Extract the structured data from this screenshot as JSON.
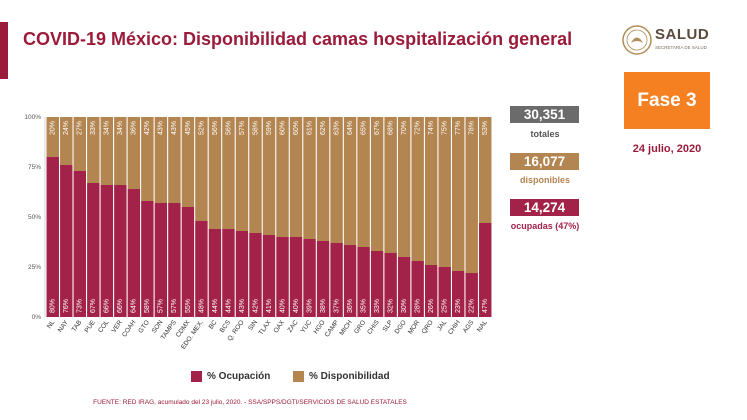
{
  "title": "COVID-19 México: Disponibilidad camas hospitalización general",
  "logo": {
    "name": "SALUD",
    "subtitle": "SECRETARÍA DE SALUD"
  },
  "phase": "Fase 3",
  "date": "24 julio, 2020",
  "stats": {
    "total_value": "30,351",
    "total_label": "totales",
    "available_value": "16,077",
    "available_label": "disponibles",
    "occupied_value": "14,274",
    "occupied_label": "ocupadas (47%)"
  },
  "legend": {
    "occupancy": "% Ocupación",
    "availability": "% Disponibilidad"
  },
  "source": "FUENTE: RED IRAG, acumulado del 23 julio, 2020. -  SSA/SPPS/DGTI/SERVICIOS DE SALUD ESTATALES",
  "colors": {
    "occupancy": "#a3224a",
    "availability": "#b38551",
    "accent": "#9b1b3a",
    "phase": "#f58021",
    "total_box": "#6b6b6b",
    "available_box": "#b38551",
    "occupied_box": "#a3224a"
  },
  "chart_data": {
    "type": "bar",
    "stacked": true,
    "categories": [
      "NL",
      "NAY",
      "TAB",
      "PUE",
      "COL",
      "VER",
      "COAH",
      "GTO",
      "SON",
      "TAMPS",
      "CDMX",
      "EDO. MEX.",
      "BC",
      "BCS",
      "Q. ROO",
      "SIN",
      "TLAX",
      "OAX",
      "ZAC",
      "YUC",
      "HGO",
      "CAMP",
      "MICH",
      "GRO",
      "CHIS",
      "SLP",
      "DGO",
      "MOR",
      "QRO",
      "JAL",
      "CHIH",
      "AGS",
      "NAL"
    ],
    "series": [
      {
        "name": "% Ocupación",
        "values": [
          80,
          76,
          73,
          67,
          66,
          66,
          64,
          58,
          57,
          57,
          55,
          48,
          44,
          44,
          43,
          42,
          41,
          40,
          40,
          39,
          38,
          37,
          36,
          35,
          33,
          32,
          30,
          28,
          26,
          25,
          23,
          22,
          47
        ]
      },
      {
        "name": "% Disponibilidad",
        "values": [
          20,
          24,
          27,
          33,
          34,
          34,
          36,
          42,
          43,
          43,
          45,
          52,
          56,
          56,
          57,
          58,
          59,
          60,
          60,
          61,
          62,
          63,
          64,
          65,
          67,
          68,
          70,
          72,
          74,
          75,
          77,
          78,
          53
        ]
      }
    ],
    "yticks": [
      "0%",
      "25%",
      "50%",
      "75%",
      "100%"
    ],
    "ylim": [
      0,
      100
    ],
    "grid": false,
    "legend_position": "bottom"
  }
}
